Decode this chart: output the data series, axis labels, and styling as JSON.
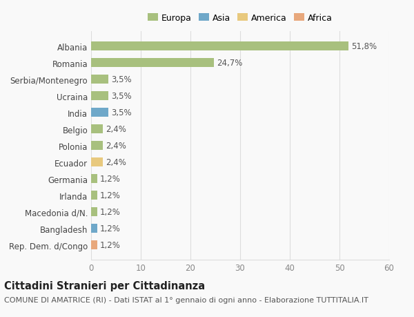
{
  "categories": [
    "Rep. Dem. d/Congo",
    "Bangladesh",
    "Macedonia d/N.",
    "Irlanda",
    "Germania",
    "Ecuador",
    "Polonia",
    "Belgio",
    "India",
    "Ucraina",
    "Serbia/Montenegro",
    "Romania",
    "Albania"
  ],
  "values": [
    1.2,
    1.2,
    1.2,
    1.2,
    1.2,
    2.4,
    2.4,
    2.4,
    3.5,
    3.5,
    3.5,
    24.7,
    51.8
  ],
  "colors": [
    "#e8a87c",
    "#6fa8c9",
    "#a8c07e",
    "#a8c07e",
    "#a8c07e",
    "#e8c97e",
    "#a8c07e",
    "#a8c07e",
    "#6fa8c9",
    "#a8c07e",
    "#a8c07e",
    "#a8c07e",
    "#a8c07e"
  ],
  "labels": [
    "1,2%",
    "1,2%",
    "1,2%",
    "1,2%",
    "1,2%",
    "2,4%",
    "2,4%",
    "2,4%",
    "3,5%",
    "3,5%",
    "3,5%",
    "24,7%",
    "51,8%"
  ],
  "legend_labels": [
    "Europa",
    "Asia",
    "America",
    "Africa"
  ],
  "legend_colors": [
    "#a8c07e",
    "#6fa8c9",
    "#e8c97e",
    "#e8a87c"
  ],
  "title": "Cittadini Stranieri per Cittadinanza",
  "subtitle": "COMUNE DI AMATRICE (RI) - Dati ISTAT al 1° gennaio di ogni anno - Elaborazione TUTTITALIA.IT",
  "xlim": [
    0,
    60
  ],
  "xticks": [
    0,
    10,
    20,
    30,
    40,
    50,
    60
  ],
  "background_color": "#f9f9f9",
  "grid_color": "#dddddd",
  "bar_height": 0.55,
  "title_fontsize": 10.5,
  "subtitle_fontsize": 8,
  "tick_fontsize": 8.5,
  "label_fontsize": 8.5
}
